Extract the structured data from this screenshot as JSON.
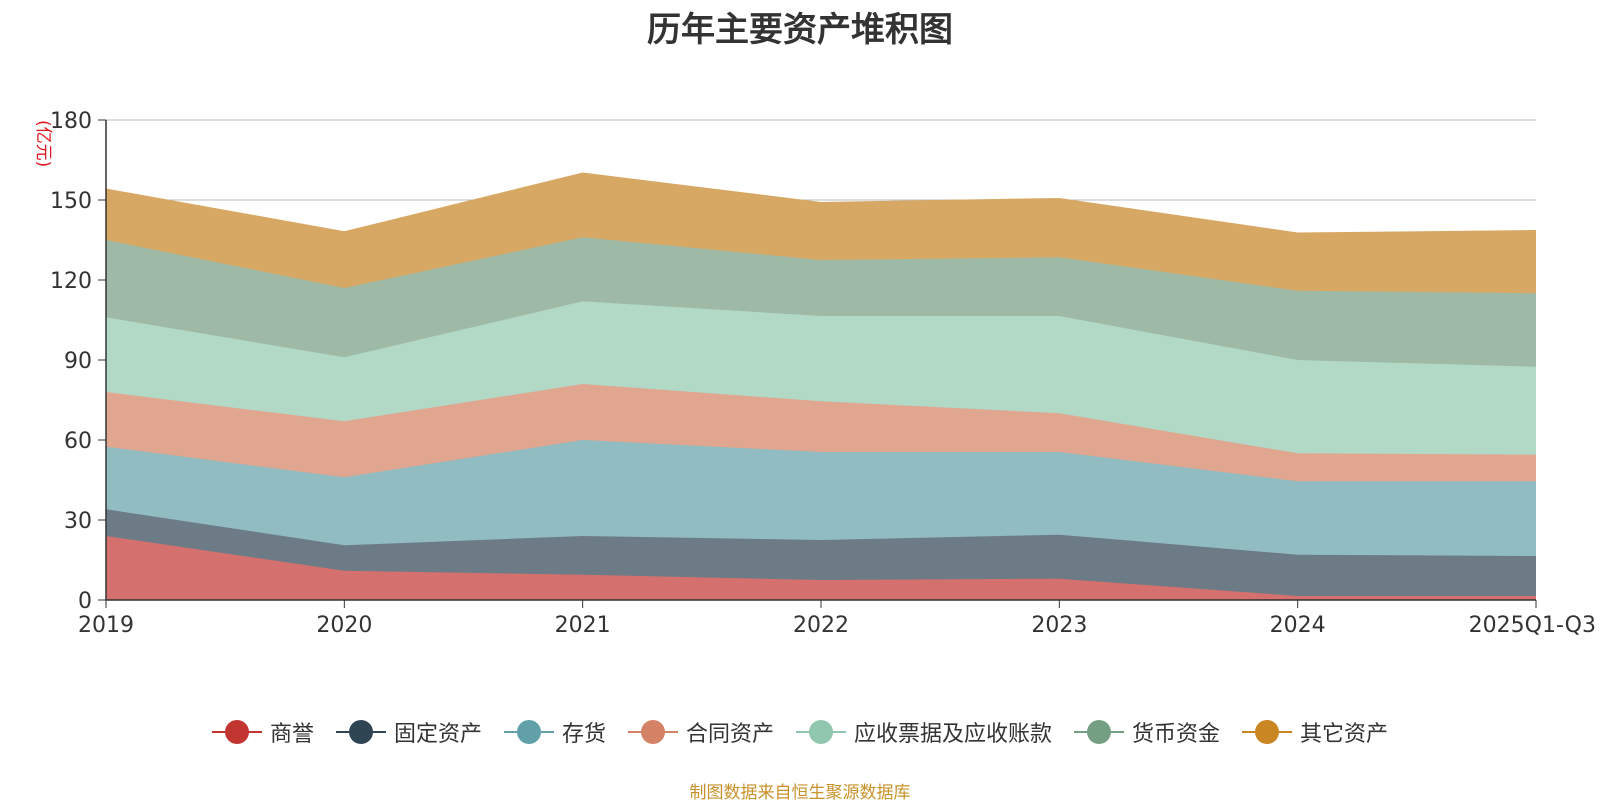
{
  "chart_data": {
    "type": "area",
    "stacked": true,
    "title": "历年主要资产堆积图",
    "unit_label": "(亿元)",
    "categories": [
      "2019",
      "2020",
      "2021",
      "2022",
      "2023",
      "2024",
      "2025Q1-Q3"
    ],
    "ylim": [
      0,
      180
    ],
    "yticks": [
      0,
      30,
      60,
      90,
      120,
      150,
      180
    ],
    "grid": true,
    "legend_position": "bottom",
    "series": [
      {
        "name": "商誉",
        "color": "#c23531",
        "area_color": "#d4706d",
        "values": [
          24,
          11,
          9.5,
          7.5,
          8,
          1.5,
          1.5
        ]
      },
      {
        "name": "固定资产",
        "color": "#2f4554",
        "area_color": "#6d7b87",
        "values": [
          10,
          9.5,
          14.5,
          15,
          16.5,
          15.5,
          15
        ]
      },
      {
        "name": "存货",
        "color": "#61a0a8",
        "area_color": "#90bcc2",
        "values": [
          23.5,
          25.5,
          36,
          33,
          31,
          27.5,
          28
        ]
      },
      {
        "name": "合同资产",
        "color": "#d48265",
        "area_color": "#e0a690",
        "values": [
          20.5,
          21,
          21,
          19,
          14.5,
          10.5,
          10
        ]
      },
      {
        "name": "应收票据及应收账款",
        "color": "#91c7ae",
        "area_color": "#b2d8c6",
        "values": [
          28,
          24,
          31,
          32,
          36.5,
          35,
          33
        ]
      },
      {
        "name": "货币资金",
        "color": "#749f83",
        "area_color": "#9eb9a5",
        "values": [
          29,
          26,
          24,
          21,
          22,
          26,
          27.5
        ]
      },
      {
        "name": "其它资产",
        "color": "#ca8622",
        "area_color": "#d7a864",
        "values": [
          19,
          21,
          24,
          21.5,
          22,
          21.5,
          23.5
        ]
      }
    ],
    "source_note": "制图数据来自恒生聚源数据库"
  }
}
